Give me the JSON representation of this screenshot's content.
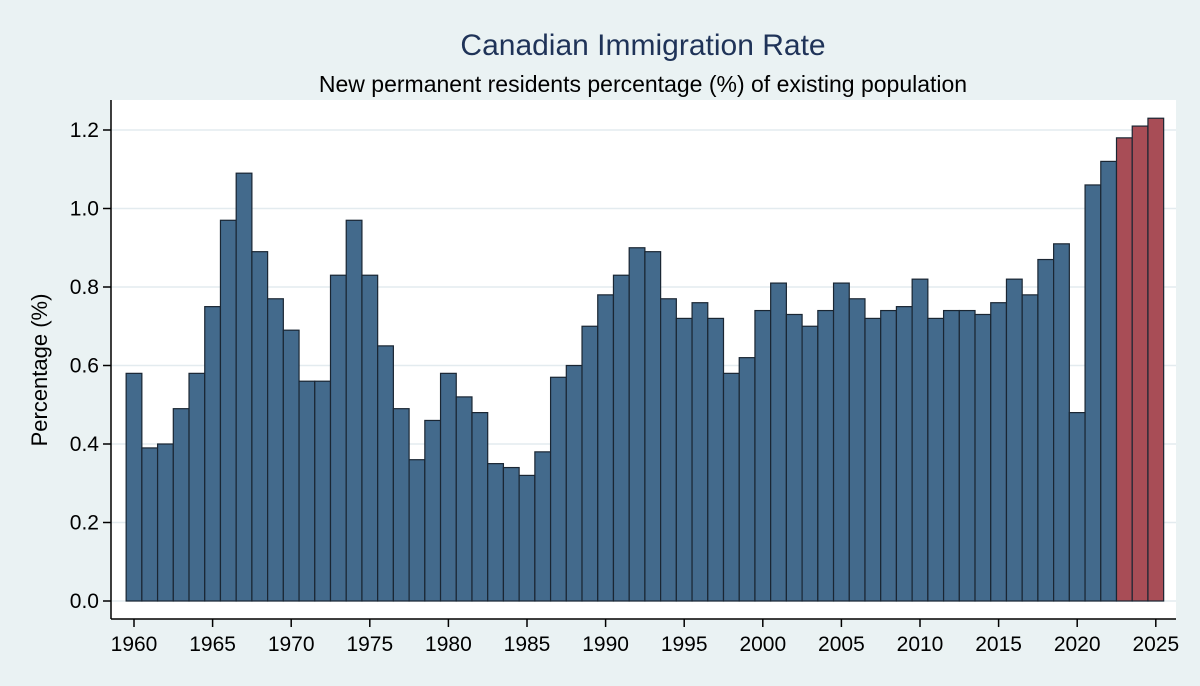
{
  "chart_data": {
    "type": "bar",
    "title": "Canadian Immigration Rate",
    "subtitle": "New permanent residents percentage (%) of existing population",
    "xlabel": "",
    "ylabel": "Percentage (%)",
    "xlim": [
      1960,
      2025
    ],
    "ylim": [
      0,
      1.25
    ],
    "x_ticks": [
      "1960",
      "1965",
      "1970",
      "1975",
      "1980",
      "1985",
      "1990",
      "1995",
      "2000",
      "2005",
      "2010",
      "2015",
      "2020",
      "2025"
    ],
    "y_ticks": [
      "0.0",
      "0.2",
      "0.4",
      "0.6",
      "0.8",
      "1.0",
      "1.2"
    ],
    "grid": "horizontal",
    "colors": {
      "actual": "#436a8c",
      "projected": "#a84d56",
      "bar_edge": "#1a2633",
      "plot_background": "#ffffff",
      "outer_background": "#eaf2f3",
      "gridline": "#e3ebef",
      "title": "#1f3358"
    },
    "series": [
      {
        "years": [
          1960,
          1961,
          1962,
          1963,
          1964,
          1965,
          1966,
          1967,
          1968,
          1969,
          1970,
          1971,
          1972,
          1973,
          1974,
          1975,
          1976,
          1977,
          1978,
          1979,
          1980,
          1981,
          1982,
          1983,
          1984,
          1985,
          1986,
          1987,
          1988,
          1989,
          1990,
          1991,
          1992,
          1993,
          1994,
          1995,
          1996,
          1997,
          1998,
          1999,
          2000,
          2001,
          2002,
          2003,
          2004,
          2005,
          2006,
          2007,
          2008,
          2009,
          2010,
          2011,
          2012,
          2013,
          2014,
          2015,
          2016,
          2017,
          2018,
          2019,
          2020,
          2021,
          2022
        ],
        "values": [
          0.58,
          0.39,
          0.4,
          0.49,
          0.58,
          0.75,
          0.97,
          1.09,
          0.89,
          0.77,
          0.69,
          0.56,
          0.56,
          0.83,
          0.97,
          0.83,
          0.65,
          0.49,
          0.36,
          0.46,
          0.58,
          0.52,
          0.48,
          0.35,
          0.34,
          0.32,
          0.38,
          0.57,
          0.6,
          0.7,
          0.78,
          0.83,
          0.9,
          0.89,
          0.77,
          0.72,
          0.76,
          0.72,
          0.58,
          0.62,
          0.74,
          0.81,
          0.73,
          0.7,
          0.74,
          0.81,
          0.77,
          0.72,
          0.74,
          0.75,
          0.82,
          0.72,
          0.74,
          0.74,
          0.73,
          0.76,
          0.82,
          0.78,
          0.87,
          0.91,
          0.48,
          1.06,
          1.12
        ]
      },
      {
        "years": [
          2023,
          2024,
          2025
        ],
        "values": [
          1.18,
          1.21,
          1.23
        ]
      }
    ]
  }
}
